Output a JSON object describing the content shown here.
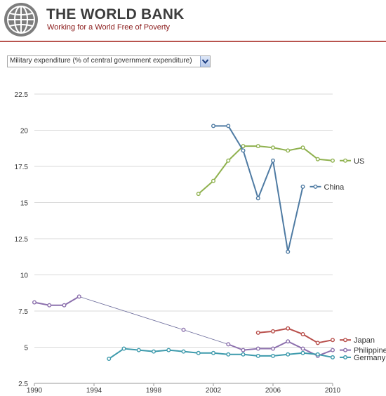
{
  "header": {
    "brand_name": "THE WORLD BANK",
    "tagline": "Working for a World Free of Poverty",
    "logo_icon": "world-bank-globe-icon",
    "rule_color": "#b8544e"
  },
  "indicator_select": {
    "selected": "Military expenditure (% of central government expenditure)",
    "arrow_icon": "chevron-down-icon"
  },
  "chart_data": {
    "type": "line",
    "title": "",
    "xlabel": "",
    "ylabel": "",
    "xlim": [
      1990,
      2010
    ],
    "ylim": [
      2.5,
      22.5
    ],
    "yticks": [
      "2.5",
      "5",
      "7.5",
      "10",
      "12.5",
      "15",
      "17.5",
      "20",
      "22.5"
    ],
    "xticks": [
      "1990",
      "1994",
      "1998",
      "2002",
      "2006",
      "2010"
    ],
    "grid": true,
    "legend": "labels at right end of each series",
    "series": [
      {
        "name": "US",
        "color": "#8fb14e",
        "x": [
          2001,
          2002,
          2003,
          2004,
          2005,
          2006,
          2007,
          2008,
          2009,
          2010
        ],
        "y": [
          15.6,
          16.5,
          17.9,
          18.9,
          18.9,
          18.8,
          18.6,
          18.8,
          18.0,
          17.9
        ]
      },
      {
        "name": "China",
        "color": "#4f7ba3",
        "x": [
          2002,
          2003,
          2004,
          2005,
          2006,
          2007,
          2008
        ],
        "y": [
          20.3,
          20.3,
          18.6,
          15.3,
          17.9,
          11.6,
          16.1
        ]
      },
      {
        "name": "Japan",
        "color": "#b84e4a",
        "x": [
          2005,
          2006,
          2007,
          2008,
          2009,
          2010
        ],
        "y": [
          6.0,
          6.1,
          6.3,
          5.9,
          5.3,
          5.5
        ]
      },
      {
        "name": "Philippines",
        "color": "#8c70ad",
        "x": [
          1990,
          1991,
          1992,
          1993,
          2000,
          2003,
          2004,
          2005,
          2006,
          2007,
          2008,
          2009,
          2010
        ],
        "y": [
          8.1,
          7.9,
          7.9,
          8.5,
          6.2,
          5.2,
          4.8,
          4.9,
          4.9,
          5.4,
          4.9,
          4.4,
          4.8
        ],
        "segments": [
          [
            1990,
            1993
          ],
          [
            2004,
            2010
          ]
        ],
        "gap_connector": {
          "from": 1993,
          "to": 2003,
          "color": "#6a6a9a"
        }
      },
      {
        "name": "Germany",
        "color": "#3d9aac",
        "x": [
          1995,
          1996,
          1997,
          1998,
          1999,
          2000,
          2001,
          2002,
          2003,
          2004,
          2005,
          2006,
          2007,
          2008,
          2009,
          2010
        ],
        "y": [
          4.2,
          4.9,
          4.8,
          4.7,
          4.8,
          4.7,
          4.6,
          4.6,
          4.5,
          4.5,
          4.4,
          4.4,
          4.5,
          4.6,
          4.5,
          4.3
        ]
      }
    ]
  }
}
